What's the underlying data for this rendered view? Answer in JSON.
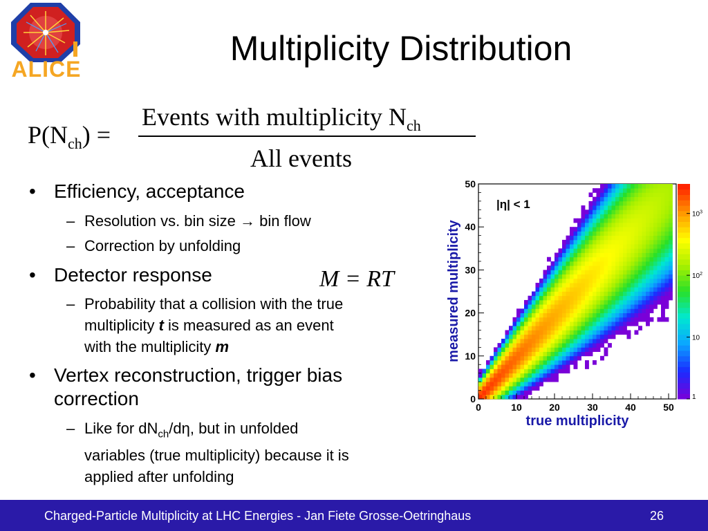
{
  "logo": {
    "text": "ALICE"
  },
  "title": "Multiplicity Distribution",
  "formula": {
    "lhs_main": "P(N",
    "lhs_sub": "ch",
    "lhs_end": ") =",
    "numerator_main": "Events with multiplicity N",
    "numerator_sub": "ch",
    "denominator": "All events"
  },
  "bullets": [
    {
      "text": "Efficiency, acceptance",
      "subs": [
        {
          "text_a": "Resolution vs. bin size ",
          "arrow": "→",
          "text_b": " bin flow"
        },
        {
          "text": "Correction by unfolding"
        }
      ]
    },
    {
      "text": "Detector response",
      "equation": "M  = RT",
      "subs": [
        {
          "line1": "Probability that a collision with the true",
          "line2_a": "multiplicity ",
          "line2_em": "t",
          "line2_b": " is measured as an event",
          "line3_a": "with the multiplicity ",
          "line3_em": "m"
        }
      ]
    },
    {
      "line1": "Vertex reconstruction, trigger bias",
      "line2": "correction",
      "subs": [
        {
          "a": "Like for dN",
          "sub": "ch",
          "b": "/d",
          "eta": "η",
          "c": ", but in unfolded",
          "line2": "variables (true multiplicity) because it is",
          "line3": "applied after unfolding"
        }
      ]
    }
  ],
  "chart_data": {
    "type": "heatmap",
    "annotation": "|η| < 1",
    "xlabel": "true multiplicity",
    "ylabel": "measured multiplicity",
    "xlim": [
      0,
      52
    ],
    "ylim": [
      0,
      50
    ],
    "x_ticks": [
      0,
      10,
      20,
      30,
      40,
      50
    ],
    "y_ticks": [
      0,
      10,
      20,
      30,
      40,
      50
    ],
    "color_scale": "log",
    "colorbar_ticks": [
      {
        "value": 1,
        "label": "1"
      },
      {
        "value": 10,
        "label": "10"
      },
      {
        "value": 100,
        "label": "10",
        "sup": "2"
      },
      {
        "value": 1000,
        "label": "10",
        "sup": "3"
      }
    ],
    "colorbar_max": 3000,
    "response_model": {
      "peak_count": 2500,
      "slope": 0.95,
      "decay_length": 18,
      "spread_base": 1.3,
      "spread_scale": 0.12
    }
  },
  "footer": {
    "text": "Charged-Particle Multiplicity at LHC Energies - Jan Fiete Grosse-Oetringhaus",
    "page": "26"
  }
}
